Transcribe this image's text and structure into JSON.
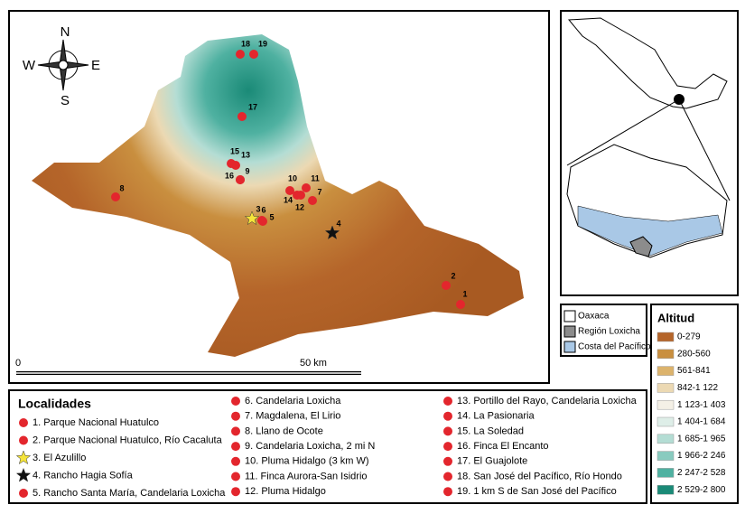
{
  "map": {
    "compass": {
      "north": "N",
      "south": "S",
      "east": "E",
      "west": "W"
    },
    "scale": {
      "start": "0",
      "end": "50 km"
    },
    "points": [
      {
        "label": "1",
        "symbol": "circle",
        "color": "#e3262d"
      },
      {
        "label": "2",
        "symbol": "circle",
        "color": "#e3262d"
      },
      {
        "label": "3",
        "symbol": "star",
        "color": "#f5e43a"
      },
      {
        "label": "4",
        "symbol": "star",
        "color": "#111111"
      },
      {
        "label": "5",
        "symbol": "circle",
        "color": "#e3262d"
      },
      {
        "label": "6",
        "symbol": "circle",
        "color": "#e3262d"
      },
      {
        "label": "7",
        "symbol": "circle",
        "color": "#e3262d"
      },
      {
        "label": "8",
        "symbol": "circle",
        "color": "#e3262d"
      },
      {
        "label": "9",
        "symbol": "circle",
        "color": "#e3262d"
      },
      {
        "label": "10",
        "symbol": "circle",
        "color": "#e3262d"
      },
      {
        "label": "11",
        "symbol": "circle",
        "color": "#e3262d"
      },
      {
        "label": "12",
        "symbol": "circle",
        "color": "#e3262d"
      },
      {
        "label": "13",
        "symbol": "circle",
        "color": "#e3262d"
      },
      {
        "label": "14",
        "symbol": "circle",
        "color": "#e3262d"
      },
      {
        "label": "15",
        "symbol": "circle",
        "color": "#e3262d"
      },
      {
        "label": "16",
        "symbol": "circle",
        "color": "#e3262d"
      },
      {
        "label": "17",
        "symbol": "circle",
        "color": "#e3262d"
      },
      {
        "label": "18",
        "symbol": "circle",
        "color": "#e3262d"
      },
      {
        "label": "19",
        "symbol": "circle",
        "color": "#e3262d"
      }
    ]
  },
  "inset_legend": {
    "items": [
      {
        "label": "Oaxaca",
        "color": "#ffffff"
      },
      {
        "label": "Región Loxicha",
        "color": "#8c8c8c"
      },
      {
        "label": "Costa del Pacífico",
        "color": "#a9c8e6"
      }
    ]
  },
  "altitude_legend": {
    "title": "Altitud",
    "items": [
      {
        "label": "0-279",
        "color": "#b5652a"
      },
      {
        "label": "280-560",
        "color": "#c98f3f"
      },
      {
        "label": "561-841",
        "color": "#dcb36c"
      },
      {
        "label": "842-1 122",
        "color": "#ecd9b3"
      },
      {
        "label": "1 123-1 403",
        "color": "#f4f0e6"
      },
      {
        "label": "1 404-1 684",
        "color": "#deeee8"
      },
      {
        "label": "1 685-1 965",
        "color": "#b4ddd4"
      },
      {
        "label": "1 966-2 246",
        "color": "#89cbbf"
      },
      {
        "label": "2 247-2 528",
        "color": "#4fb1a1"
      },
      {
        "label": "2 529-2 800",
        "color": "#1a8a77"
      }
    ]
  },
  "localities_legend": {
    "title": "Localidades",
    "items": [
      {
        "label": "1. Parque Nacional Huatulco",
        "symbol": "circle",
        "color": "#e3262d"
      },
      {
        "label": "2. Parque Nacional Huatulco, Río Cacaluta",
        "symbol": "circle",
        "color": "#e3262d"
      },
      {
        "label": "3. El Azulillo",
        "symbol": "star",
        "color": "#f5e43a"
      },
      {
        "label": "4. Rancho Hagia Sofía",
        "symbol": "star",
        "color": "#111111"
      },
      {
        "label": "5. Rancho Santa María, Candelaria Loxicha",
        "symbol": "circle",
        "color": "#e3262d"
      },
      {
        "label": "6. Candelaria Loxicha",
        "symbol": "circle",
        "color": "#e3262d"
      },
      {
        "label": "7. Magdalena, El Lirio",
        "symbol": "circle",
        "color": "#e3262d"
      },
      {
        "label": "8. Llano de Ocote",
        "symbol": "circle",
        "color": "#e3262d"
      },
      {
        "label": "9. Candelaria Loxicha, 2 mi N",
        "symbol": "circle",
        "color": "#e3262d"
      },
      {
        "label": "10. Pluma Hidalgo (3 km W)",
        "symbol": "circle",
        "color": "#e3262d"
      },
      {
        "label": "11. Finca Aurora-San Isidrio",
        "symbol": "circle",
        "color": "#e3262d"
      },
      {
        "label": "12. Pluma Hidalgo",
        "symbol": "circle",
        "color": "#e3262d"
      },
      {
        "label": "13. Portillo del Rayo, Candelaria Loxicha",
        "symbol": "circle",
        "color": "#e3262d"
      },
      {
        "label": "14. La Pasionaria",
        "symbol": "circle",
        "color": "#e3262d"
      },
      {
        "label": "15. La Soledad",
        "symbol": "circle",
        "color": "#e3262d"
      },
      {
        "label": "16. Finca El Encanto",
        "symbol": "circle",
        "color": "#e3262d"
      },
      {
        "label": "17. El Guajolote",
        "symbol": "circle",
        "color": "#e3262d"
      },
      {
        "label": "18. San José del Pacífico, Río Hondo",
        "symbol": "circle",
        "color": "#e3262d"
      },
      {
        "label": "19. 1 km S de San José del Pacífico",
        "symbol": "circle",
        "color": "#e3262d"
      }
    ]
  }
}
